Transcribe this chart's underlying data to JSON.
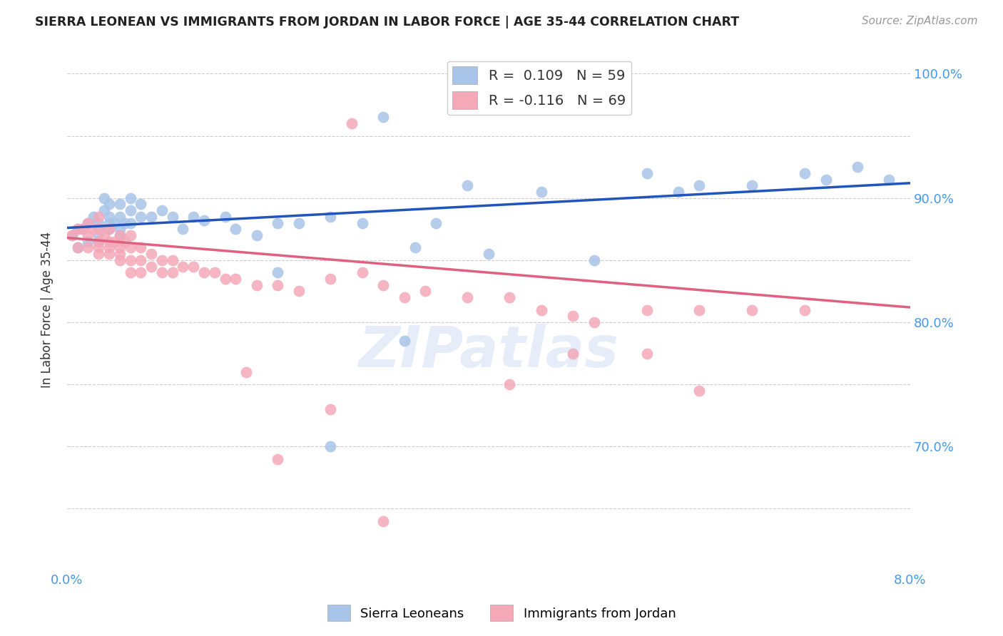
{
  "title": "SIERRA LEONEAN VS IMMIGRANTS FROM JORDAN IN LABOR FORCE | AGE 35-44 CORRELATION CHART",
  "source": "Source: ZipAtlas.com",
  "ylabel": "In Labor Force | Age 35-44",
  "x_min": 0.0,
  "x_max": 0.08,
  "y_min": 0.6,
  "y_max": 1.02,
  "blue_color": "#a8c4e8",
  "pink_color": "#f4a8b8",
  "blue_line_color": "#2255bb",
  "pink_line_color": "#e06080",
  "tick_label_color_right": "#4499ee",
  "tick_label_color_bottom": "#4499ee",
  "watermark": "ZIPatlas",
  "background_color": "#ffffff",
  "grid_color": "#cccccc",
  "blue_scatter_x": [
    0.0005,
    0.001,
    0.001,
    0.0015,
    0.002,
    0.002,
    0.0025,
    0.003,
    0.003,
    0.003,
    0.003,
    0.0035,
    0.0035,
    0.004,
    0.004,
    0.004,
    0.004,
    0.0045,
    0.005,
    0.005,
    0.005,
    0.005,
    0.0055,
    0.006,
    0.006,
    0.006,
    0.007,
    0.007,
    0.008,
    0.009,
    0.01,
    0.011,
    0.012,
    0.013,
    0.015,
    0.016,
    0.018,
    0.02,
    0.022,
    0.025,
    0.028,
    0.03,
    0.033,
    0.035,
    0.038,
    0.04,
    0.045,
    0.05,
    0.055,
    0.058,
    0.06,
    0.065,
    0.07,
    0.072,
    0.075,
    0.078,
    0.02,
    0.025,
    0.032
  ],
  "blue_scatter_y": [
    0.87,
    0.875,
    0.86,
    0.875,
    0.88,
    0.865,
    0.885,
    0.88,
    0.875,
    0.87,
    0.865,
    0.9,
    0.89,
    0.895,
    0.885,
    0.88,
    0.875,
    0.88,
    0.895,
    0.885,
    0.875,
    0.87,
    0.88,
    0.9,
    0.89,
    0.88,
    0.895,
    0.885,
    0.885,
    0.89,
    0.885,
    0.875,
    0.885,
    0.882,
    0.885,
    0.875,
    0.87,
    0.88,
    0.88,
    0.885,
    0.88,
    0.965,
    0.86,
    0.88,
    0.91,
    0.855,
    0.905,
    0.85,
    0.92,
    0.905,
    0.91,
    0.91,
    0.92,
    0.915,
    0.925,
    0.915,
    0.84,
    0.7,
    0.785
  ],
  "pink_scatter_x": [
    0.0005,
    0.001,
    0.001,
    0.0015,
    0.002,
    0.002,
    0.002,
    0.0025,
    0.003,
    0.003,
    0.003,
    0.003,
    0.003,
    0.0035,
    0.004,
    0.004,
    0.004,
    0.004,
    0.0045,
    0.005,
    0.005,
    0.005,
    0.005,
    0.0055,
    0.006,
    0.006,
    0.006,
    0.006,
    0.007,
    0.007,
    0.007,
    0.008,
    0.008,
    0.009,
    0.009,
    0.01,
    0.01,
    0.011,
    0.012,
    0.013,
    0.014,
    0.015,
    0.016,
    0.018,
    0.02,
    0.022,
    0.025,
    0.028,
    0.03,
    0.032,
    0.034,
    0.038,
    0.042,
    0.045,
    0.048,
    0.05,
    0.055,
    0.06,
    0.065,
    0.07,
    0.027,
    0.042,
    0.048,
    0.055,
    0.06,
    0.017,
    0.02,
    0.025,
    0.03
  ],
  "pink_scatter_y": [
    0.87,
    0.875,
    0.86,
    0.875,
    0.88,
    0.87,
    0.86,
    0.875,
    0.885,
    0.875,
    0.865,
    0.86,
    0.855,
    0.87,
    0.875,
    0.865,
    0.86,
    0.855,
    0.865,
    0.87,
    0.86,
    0.855,
    0.85,
    0.865,
    0.87,
    0.86,
    0.85,
    0.84,
    0.86,
    0.85,
    0.84,
    0.855,
    0.845,
    0.85,
    0.84,
    0.85,
    0.84,
    0.845,
    0.845,
    0.84,
    0.84,
    0.835,
    0.835,
    0.83,
    0.83,
    0.825,
    0.835,
    0.84,
    0.83,
    0.82,
    0.825,
    0.82,
    0.82,
    0.81,
    0.805,
    0.8,
    0.81,
    0.81,
    0.81,
    0.81,
    0.96,
    0.75,
    0.775,
    0.775,
    0.745,
    0.76,
    0.69,
    0.73,
    0.64
  ]
}
